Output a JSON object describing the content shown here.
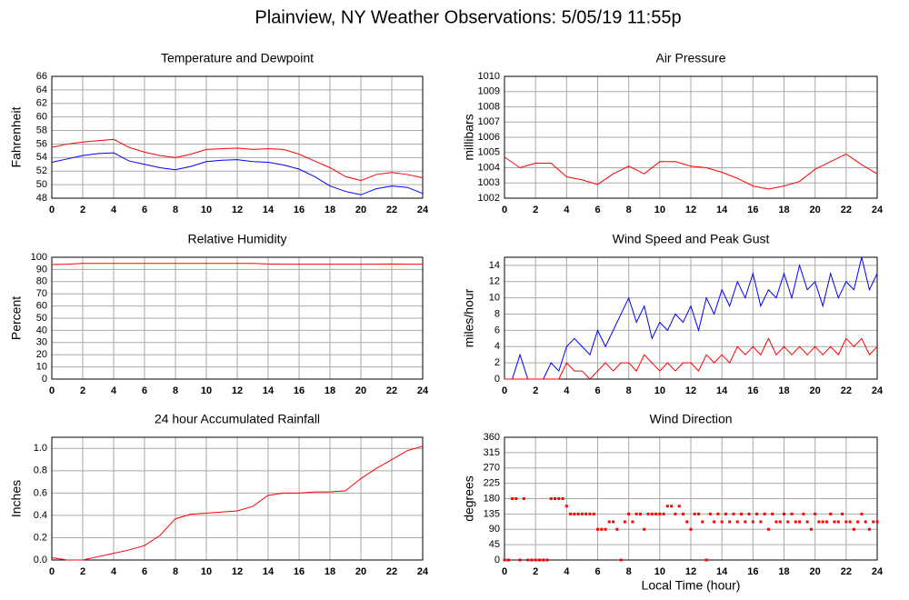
{
  "title": "Plainview, NY Weather Observations: 5/05/19 11:55p",
  "chart_data": [
    {
      "type": "line",
      "title": "Temperature and Dewpoint",
      "ylabel": "Fahrenheit",
      "x": [
        0,
        1,
        2,
        3,
        4,
        5,
        6,
        7,
        8,
        9,
        10,
        11,
        12,
        13,
        14,
        15,
        16,
        17,
        18,
        19,
        20,
        21,
        22,
        23,
        24
      ],
      "xlim": [
        0,
        24
      ],
      "xticks": [
        0,
        2,
        4,
        6,
        8,
        10,
        12,
        14,
        16,
        18,
        20,
        22,
        24
      ],
      "ylim": [
        48,
        66
      ],
      "yticks": [
        48,
        50,
        52,
        54,
        56,
        58,
        60,
        62,
        64,
        66
      ],
      "grid": true,
      "series": [
        {
          "color": "#ff0000",
          "values": [
            55.5,
            56,
            56.3,
            56.5,
            56.7,
            55.5,
            54.8,
            54.3,
            54,
            54.5,
            55.2,
            55.3,
            55.4,
            55.2,
            55.3,
            55.2,
            54.5,
            53.5,
            52.5,
            51.2,
            50.6,
            51.5,
            51.8,
            51.5,
            51
          ]
        },
        {
          "color": "#0000ff",
          "values": [
            53.3,
            53.8,
            54.3,
            54.6,
            54.7,
            53.5,
            53,
            52.5,
            52.2,
            52.7,
            53.4,
            53.6,
            53.7,
            53.4,
            53.3,
            52.9,
            52.3,
            51.2,
            49.8,
            49,
            48.5,
            49.4,
            49.8,
            49.6,
            48.7
          ]
        }
      ]
    },
    {
      "type": "line",
      "title": "Air Pressure",
      "ylabel": "millibars",
      "x": [
        0,
        1,
        2,
        3,
        4,
        5,
        6,
        7,
        8,
        9,
        10,
        11,
        12,
        13,
        14,
        15,
        16,
        17,
        18,
        19,
        20,
        21,
        22,
        23,
        24
      ],
      "xlim": [
        0,
        24
      ],
      "xticks": [
        0,
        2,
        4,
        6,
        8,
        10,
        12,
        14,
        16,
        18,
        20,
        22,
        24
      ],
      "ylim": [
        1002,
        1010
      ],
      "yticks": [
        1002,
        1003,
        1004,
        1005,
        1006,
        1007,
        1008,
        1009,
        1010
      ],
      "grid": true,
      "series": [
        {
          "color": "#ff0000",
          "values": [
            1004.7,
            1004,
            1004.3,
            1004.3,
            1003.4,
            1003.2,
            1002.9,
            1003.6,
            1004.1,
            1003.6,
            1004.4,
            1004.4,
            1004.1,
            1004,
            1003.7,
            1003.3,
            1002.8,
            1002.6,
            1002.8,
            1003.1,
            1003.9,
            1004.4,
            1004.9,
            1004.2,
            1003.6
          ]
        }
      ]
    },
    {
      "type": "line",
      "title": "Relative Humidity",
      "ylabel": "Percent",
      "x": [
        0,
        1,
        2,
        3,
        4,
        5,
        6,
        7,
        8,
        9,
        10,
        11,
        12,
        13,
        14,
        15,
        16,
        17,
        18,
        19,
        20,
        21,
        22,
        23,
        24
      ],
      "xlim": [
        0,
        24
      ],
      "xticks": [
        0,
        2,
        4,
        6,
        8,
        10,
        12,
        14,
        16,
        18,
        20,
        22,
        24
      ],
      "ylim": [
        0,
        100
      ],
      "yticks": [
        0,
        10,
        20,
        30,
        40,
        50,
        60,
        70,
        80,
        90,
        100
      ],
      "grid": true,
      "series": [
        {
          "color": "#ff0000",
          "values": [
            94,
            94.3,
            95,
            95,
            95,
            95,
            95,
            95,
            95,
            95,
            95,
            95,
            95,
            95,
            94.5,
            94.3,
            94.3,
            94.3,
            94.3,
            94.3,
            94.3,
            94.3,
            94.5,
            94.3,
            94.3
          ]
        }
      ]
    },
    {
      "type": "line",
      "title": "Wind Speed and Peak Gust",
      "ylabel": "miles/hour",
      "x": [
        0,
        0.5,
        1,
        1.5,
        2,
        2.5,
        3,
        3.5,
        4,
        4.5,
        5,
        5.5,
        6,
        6.5,
        7,
        7.5,
        8,
        8.5,
        9,
        9.5,
        10,
        10.5,
        11,
        11.5,
        12,
        12.5,
        13,
        13.5,
        14,
        14.5,
        15,
        15.5,
        16,
        16.5,
        17,
        17.5,
        18,
        18.5,
        19,
        19.5,
        20,
        20.5,
        21,
        21.5,
        22,
        22.5,
        23,
        23.5,
        24
      ],
      "xlim": [
        0,
        24
      ],
      "xticks": [
        0,
        2,
        4,
        6,
        8,
        10,
        12,
        14,
        16,
        18,
        20,
        22,
        24
      ],
      "ylim": [
        0,
        15
      ],
      "yticks": [
        0,
        2,
        4,
        6,
        8,
        10,
        12,
        14
      ],
      "grid": true,
      "series": [
        {
          "color": "#0000ff",
          "values": [
            0,
            0,
            3,
            0,
            0,
            0,
            2,
            1,
            4,
            5,
            4,
            3,
            6,
            4,
            6,
            8,
            10,
            7,
            9,
            5,
            7,
            6,
            8,
            7,
            9,
            6,
            10,
            8,
            11,
            9,
            12,
            10,
            13,
            9,
            11,
            10,
            13,
            10,
            14,
            11,
            12,
            9,
            13,
            10,
            12,
            11,
            15,
            11,
            13
          ]
        },
        {
          "color": "#ff0000",
          "values": [
            0,
            0,
            0,
            0,
            0,
            0,
            0,
            0,
            2,
            1,
            1,
            0,
            1,
            2,
            1,
            2,
            2,
            1,
            3,
            2,
            1,
            2,
            1,
            2,
            2,
            1,
            3,
            2,
            3,
            2,
            4,
            3,
            4,
            3,
            5,
            3,
            4,
            3,
            4,
            3,
            4,
            3,
            4,
            3,
            5,
            4,
            5,
            3,
            4
          ]
        }
      ]
    },
    {
      "type": "line",
      "title": "24 hour Accumulated Rainfall",
      "ylabel": "Inches",
      "x": [
        0,
        1,
        2,
        3,
        4,
        5,
        6,
        7,
        8,
        9,
        10,
        11,
        12,
        13,
        14,
        15,
        16,
        17,
        18,
        19,
        20,
        21,
        22,
        23,
        24
      ],
      "xlim": [
        0,
        24
      ],
      "xticks": [
        0,
        2,
        4,
        6,
        8,
        10,
        12,
        14,
        16,
        18,
        20,
        22,
        24
      ],
      "ylim": [
        0,
        1.1
      ],
      "yticks": [
        {
          "value": 0,
          "label": "0.0"
        },
        0.2,
        0.4,
        0.6,
        0.8,
        {
          "value": 1,
          "label": "1.0"
        }
      ],
      "grid": true,
      "series": [
        {
          "color": "#ff0000",
          "values": [
            0.02,
            0,
            0,
            0.03,
            0.06,
            0.09,
            0.13,
            0.22,
            0.37,
            0.41,
            0.42,
            0.43,
            0.44,
            0.48,
            0.58,
            0.6,
            0.6,
            0.61,
            0.61,
            0.62,
            0.73,
            0.82,
            0.9,
            0.98,
            1.02
          ]
        }
      ]
    },
    {
      "type": "scatter",
      "title": "Wind Direction",
      "ylabel": "degrees",
      "xlabel": "Local Time (hour)",
      "x": [
        0,
        0.25,
        0.5,
        0.75,
        1,
        1.25,
        1.5,
        1.75,
        2,
        2.25,
        2.5,
        2.75,
        3,
        3.25,
        3.5,
        3.75,
        4,
        4.25,
        4.5,
        4.75,
        5,
        5.25,
        5.5,
        5.75,
        6,
        6.25,
        6.5,
        6.75,
        7,
        7.25,
        7.5,
        7.75,
        8,
        8.25,
        8.5,
        8.75,
        9,
        9.25,
        9.5,
        9.75,
        10,
        10.25,
        10.5,
        10.75,
        11,
        11.25,
        11.5,
        11.75,
        12,
        12.25,
        12.5,
        12.75,
        13,
        13.25,
        13.5,
        13.75,
        14,
        14.25,
        14.5,
        14.75,
        15,
        15.25,
        15.5,
        15.75,
        16,
        16.25,
        16.5,
        16.75,
        17,
        17.25,
        17.5,
        17.75,
        18,
        18.25,
        18.5,
        18.75,
        19,
        19.25,
        19.5,
        19.75,
        20,
        20.25,
        20.5,
        20.75,
        21,
        21.25,
        21.5,
        21.75,
        22,
        22.25,
        22.5,
        22.75,
        23,
        23.25,
        23.5,
        23.75,
        24
      ],
      "xlim": [
        0,
        24
      ],
      "xticks": [
        0,
        2,
        4,
        6,
        8,
        10,
        12,
        14,
        16,
        18,
        20,
        22,
        24
      ],
      "ylim": [
        0,
        360
      ],
      "yticks": [
        0,
        45,
        90,
        135,
        180,
        225,
        270,
        315,
        360
      ],
      "grid": true,
      "series": [
        {
          "color": "#ff0000",
          "values": [
            0,
            0,
            180,
            180,
            0,
            180,
            0,
            0,
            0,
            0,
            0,
            0,
            180,
            180,
            180,
            180,
            158,
            135,
            135,
            135,
            135,
            135,
            135,
            135,
            90,
            90,
            90,
            112,
            112,
            90,
            0,
            112,
            135,
            112,
            135,
            135,
            90,
            135,
            135,
            135,
            135,
            135,
            158,
            158,
            135,
            158,
            135,
            112,
            90,
            135,
            135,
            112,
            0,
            135,
            112,
            135,
            112,
            135,
            112,
            135,
            112,
            135,
            112,
            135,
            112,
            135,
            112,
            135,
            90,
            135,
            112,
            112,
            135,
            112,
            135,
            112,
            112,
            135,
            112,
            90,
            135,
            112,
            112,
            112,
            135,
            112,
            112,
            135,
            112,
            112,
            90,
            112,
            135,
            112,
            90,
            112,
            112
          ]
        }
      ]
    }
  ]
}
